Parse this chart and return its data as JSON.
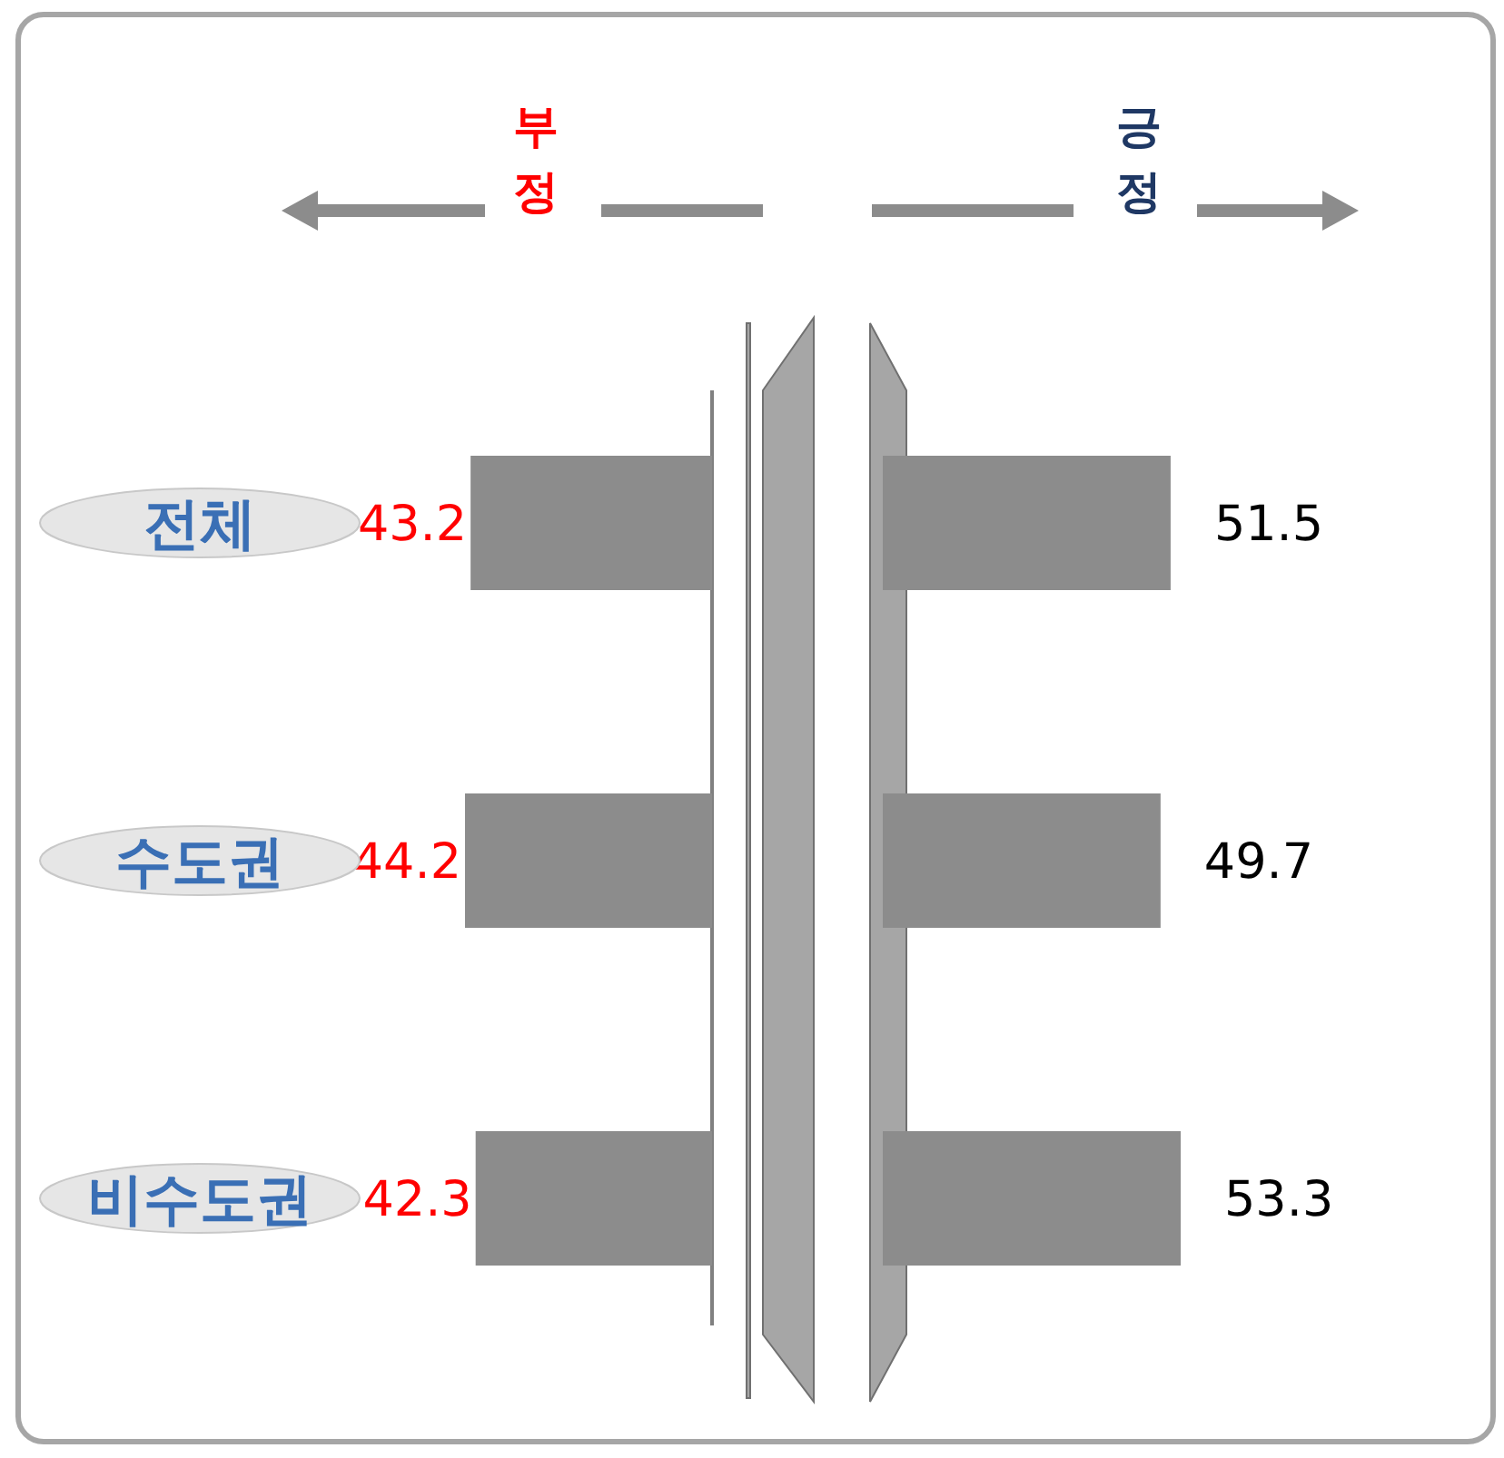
{
  "chart_data": [
    {
      "type": "bar",
      "orientation": "horizontal",
      "categories": [
        "전체",
        "수도권",
        "비수도권"
      ],
      "tick_labels": "y",
      "legend": "top",
      "series": [
        {
          "name": "부정",
          "color": "#8c8c8c",
          "values": [
            43.2,
            44.2,
            42.3
          ]
        }
      ],
      "data_labels": true
    },
    {
      "type": "bar",
      "orientation": "horizontal",
      "categories": [
        null,
        null,
        null
      ],
      "tick_labels": false,
      "legend": "top",
      "series": [
        {
          "name": "긍정",
          "color": "#8c8c8c",
          "values": [
            51.5,
            49.7,
            53.3
          ]
        }
      ],
      "data_labels": true
    }
  ]
}
